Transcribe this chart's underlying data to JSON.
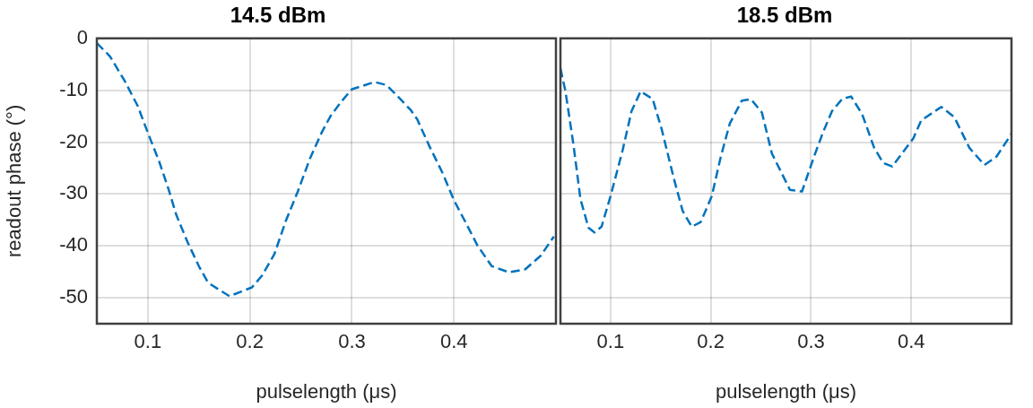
{
  "chart_data": [
    {
      "type": "line",
      "title": "14.5 dBm",
      "xlabel": "pulselength (μs)",
      "ylabel": "readout phase (°)",
      "xlim": [
        0.05,
        0.5
      ],
      "ylim": [
        -55,
        0
      ],
      "xticks": [
        0.1,
        0.2,
        0.3,
        0.4
      ],
      "yticks": [
        0,
        -10,
        -20,
        -30,
        -40,
        -50
      ],
      "grid": true,
      "line_style": "dashed",
      "marker": "none",
      "series": [
        {
          "color": "#0072bd",
          "x": [
            0.05,
            0.063,
            0.077,
            0.09,
            0.1,
            0.111,
            0.12,
            0.128,
            0.139,
            0.15,
            0.159,
            0.18,
            0.202,
            0.212,
            0.224,
            0.235,
            0.247,
            0.259,
            0.271,
            0.279,
            0.29,
            0.3,
            0.31,
            0.322,
            0.334,
            0.347,
            0.358,
            0.364,
            0.376,
            0.389,
            0.4,
            0.411,
            0.423,
            0.437,
            0.454,
            0.47,
            0.485,
            0.498
          ],
          "values": [
            -0.9,
            -3.5,
            -8.1,
            -13,
            -18.2,
            -23.7,
            -28.9,
            -34.1,
            -39.3,
            -43.9,
            -47.1,
            -49.7,
            -48,
            -45.7,
            -41.6,
            -35.3,
            -29.5,
            -23.1,
            -17.9,
            -15,
            -12.1,
            -9.8,
            -9.2,
            -8.4,
            -9,
            -11.6,
            -13.9,
            -15.6,
            -20.8,
            -26,
            -31.2,
            -35.3,
            -39.9,
            -43.9,
            -45.1,
            -44.5,
            -41.9,
            -38.2
          ]
        }
      ]
    },
    {
      "type": "line",
      "title": "18.5 dBm",
      "xlabel": "pulselength (μs)",
      "xlim": [
        0.05,
        0.5
      ],
      "ylim": [
        -55,
        0
      ],
      "xticks": [
        0.1,
        0.2,
        0.3,
        0.4
      ],
      "yticks": [
        0,
        -10,
        -20,
        -30,
        -40,
        -50
      ],
      "tick_labels": "x",
      "grid": true,
      "line_style": "dashed",
      "marker": "none",
      "series": [
        {
          "color": "#0072bd",
          "x": [
            0.05,
            0.055,
            0.063,
            0.07,
            0.078,
            0.084,
            0.091,
            0.1,
            0.112,
            0.121,
            0.13,
            0.142,
            0.151,
            0.163,
            0.172,
            0.181,
            0.19,
            0.201,
            0.21,
            0.219,
            0.231,
            0.24,
            0.251,
            0.261,
            0.279,
            0.291,
            0.303,
            0.312,
            0.321,
            0.331,
            0.34,
            0.351,
            0.363,
            0.372,
            0.381,
            0.402,
            0.41,
            0.43,
            0.443,
            0.458,
            0.473,
            0.485,
            0.5
          ],
          "values": [
            -5.8,
            -10.2,
            -20.5,
            -31,
            -36.5,
            -37.4,
            -36.3,
            -30.4,
            -21.6,
            -14,
            -10.2,
            -11.7,
            -17.5,
            -26.9,
            -33.3,
            -36.3,
            -35.4,
            -30.4,
            -22.8,
            -16.4,
            -12,
            -11.7,
            -14.3,
            -22.2,
            -29.2,
            -29.5,
            -22.8,
            -18.1,
            -14,
            -11.7,
            -11.2,
            -14.6,
            -21.1,
            -24,
            -24.7,
            -19.3,
            -15.8,
            -13.2,
            -15.2,
            -21.1,
            -24.4,
            -22.8,
            -18.4
          ]
        }
      ]
    }
  ]
}
